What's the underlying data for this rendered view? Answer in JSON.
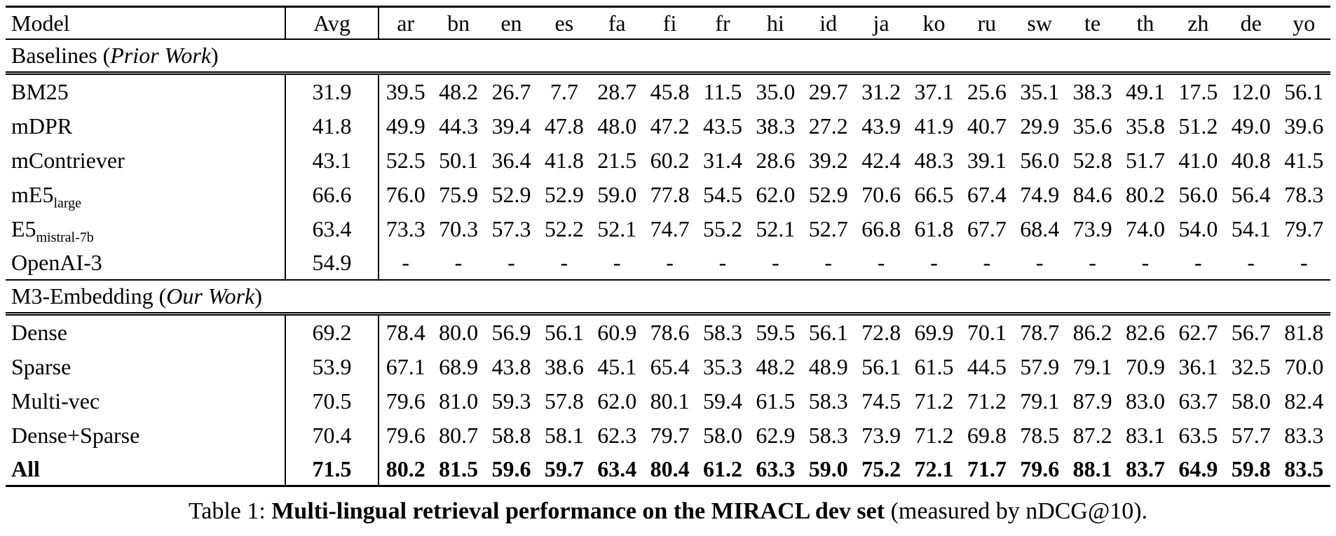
{
  "table": {
    "columns": [
      "Model",
      "Avg",
      "ar",
      "bn",
      "en",
      "es",
      "fa",
      "fi",
      "fr",
      "hi",
      "id",
      "ja",
      "ko",
      "ru",
      "sw",
      "te",
      "th",
      "zh",
      "de",
      "yo"
    ],
    "sections": [
      {
        "title_prefix": "Baselines (",
        "title_italic": "Prior Work",
        "title_suffix": ")",
        "rows": [
          {
            "model": "BM25",
            "model_sub": "",
            "bold": false,
            "avg": "31.9",
            "values": [
              "39.5",
              "48.2",
              "26.7",
              "7.7",
              "28.7",
              "45.8",
              "11.5",
              "35.0",
              "29.7",
              "31.2",
              "37.1",
              "25.6",
              "35.1",
              "38.3",
              "49.1",
              "17.5",
              "12.0",
              "56.1"
            ]
          },
          {
            "model": "mDPR",
            "model_sub": "",
            "bold": false,
            "avg": "41.8",
            "values": [
              "49.9",
              "44.3",
              "39.4",
              "47.8",
              "48.0",
              "47.2",
              "43.5",
              "38.3",
              "27.2",
              "43.9",
              "41.9",
              "40.7",
              "29.9",
              "35.6",
              "35.8",
              "51.2",
              "49.0",
              "39.6"
            ]
          },
          {
            "model": "mContriever",
            "model_sub": "",
            "bold": false,
            "avg": "43.1",
            "values": [
              "52.5",
              "50.1",
              "36.4",
              "41.8",
              "21.5",
              "60.2",
              "31.4",
              "28.6",
              "39.2",
              "42.4",
              "48.3",
              "39.1",
              "56.0",
              "52.8",
              "51.7",
              "41.0",
              "40.8",
              "41.5"
            ]
          },
          {
            "model": "mE5",
            "model_sub": "large",
            "bold": false,
            "avg": "66.6",
            "values": [
              "76.0",
              "75.9",
              "52.9",
              "52.9",
              "59.0",
              "77.8",
              "54.5",
              "62.0",
              "52.9",
              "70.6",
              "66.5",
              "67.4",
              "74.9",
              "84.6",
              "80.2",
              "56.0",
              "56.4",
              "78.3"
            ]
          },
          {
            "model": "E5",
            "model_sub": "mistral-7b",
            "bold": false,
            "avg": "63.4",
            "values": [
              "73.3",
              "70.3",
              "57.3",
              "52.2",
              "52.1",
              "74.7",
              "55.2",
              "52.1",
              "52.7",
              "66.8",
              "61.8",
              "67.7",
              "68.4",
              "73.9",
              "74.0",
              "54.0",
              "54.1",
              "79.7"
            ]
          },
          {
            "model": "OpenAI-3",
            "model_sub": "",
            "bold": false,
            "avg": "54.9",
            "values": [
              "-",
              "-",
              "-",
              "-",
              "-",
              "-",
              "-",
              "-",
              "-",
              "-",
              "-",
              "-",
              "-",
              "-",
              "-",
              "-",
              "-",
              "-"
            ]
          }
        ]
      },
      {
        "title_prefix": "M3-Embedding (",
        "title_italic": "Our Work",
        "title_suffix": ")",
        "rows": [
          {
            "model": "Dense",
            "model_sub": "",
            "bold": false,
            "avg": "69.2",
            "values": [
              "78.4",
              "80.0",
              "56.9",
              "56.1",
              "60.9",
              "78.6",
              "58.3",
              "59.5",
              "56.1",
              "72.8",
              "69.9",
              "70.1",
              "78.7",
              "86.2",
              "82.6",
              "62.7",
              "56.7",
              "81.8"
            ]
          },
          {
            "model": "Sparse",
            "model_sub": "",
            "bold": false,
            "avg": "53.9",
            "values": [
              "67.1",
              "68.9",
              "43.8",
              "38.6",
              "45.1",
              "65.4",
              "35.3",
              "48.2",
              "48.9",
              "56.1",
              "61.5",
              "44.5",
              "57.9",
              "79.1",
              "70.9",
              "36.1",
              "32.5",
              "70.0"
            ]
          },
          {
            "model": "Multi-vec",
            "model_sub": "",
            "bold": false,
            "avg": "70.5",
            "values": [
              "79.6",
              "81.0",
              "59.3",
              "57.8",
              "62.0",
              "80.1",
              "59.4",
              "61.5",
              "58.3",
              "74.5",
              "71.2",
              "71.2",
              "79.1",
              "87.9",
              "83.0",
              "63.7",
              "58.0",
              "82.4"
            ]
          },
          {
            "model": "Dense+Sparse",
            "model_sub": "",
            "bold": false,
            "avg": "70.4",
            "values": [
              "79.6",
              "80.7",
              "58.8",
              "58.1",
              "62.3",
              "79.7",
              "58.0",
              "62.9",
              "58.3",
              "73.9",
              "71.2",
              "69.8",
              "78.5",
              "87.2",
              "83.1",
              "63.5",
              "57.7",
              "83.3"
            ]
          },
          {
            "model": "All",
            "model_sub": "",
            "bold": true,
            "avg": "71.5",
            "values": [
              "80.2",
              "81.5",
              "59.6",
              "59.7",
              "63.4",
              "80.4",
              "61.2",
              "63.3",
              "59.0",
              "75.2",
              "72.1",
              "71.7",
              "79.6",
              "88.1",
              "83.7",
              "64.9",
              "59.8",
              "83.5"
            ]
          }
        ]
      }
    ]
  },
  "caption": {
    "prefix": "Table 1: ",
    "bold": "Multi-lingual retrieval performance on the MIRACL dev set",
    "suffix": " (measured by nDCG@10)."
  }
}
